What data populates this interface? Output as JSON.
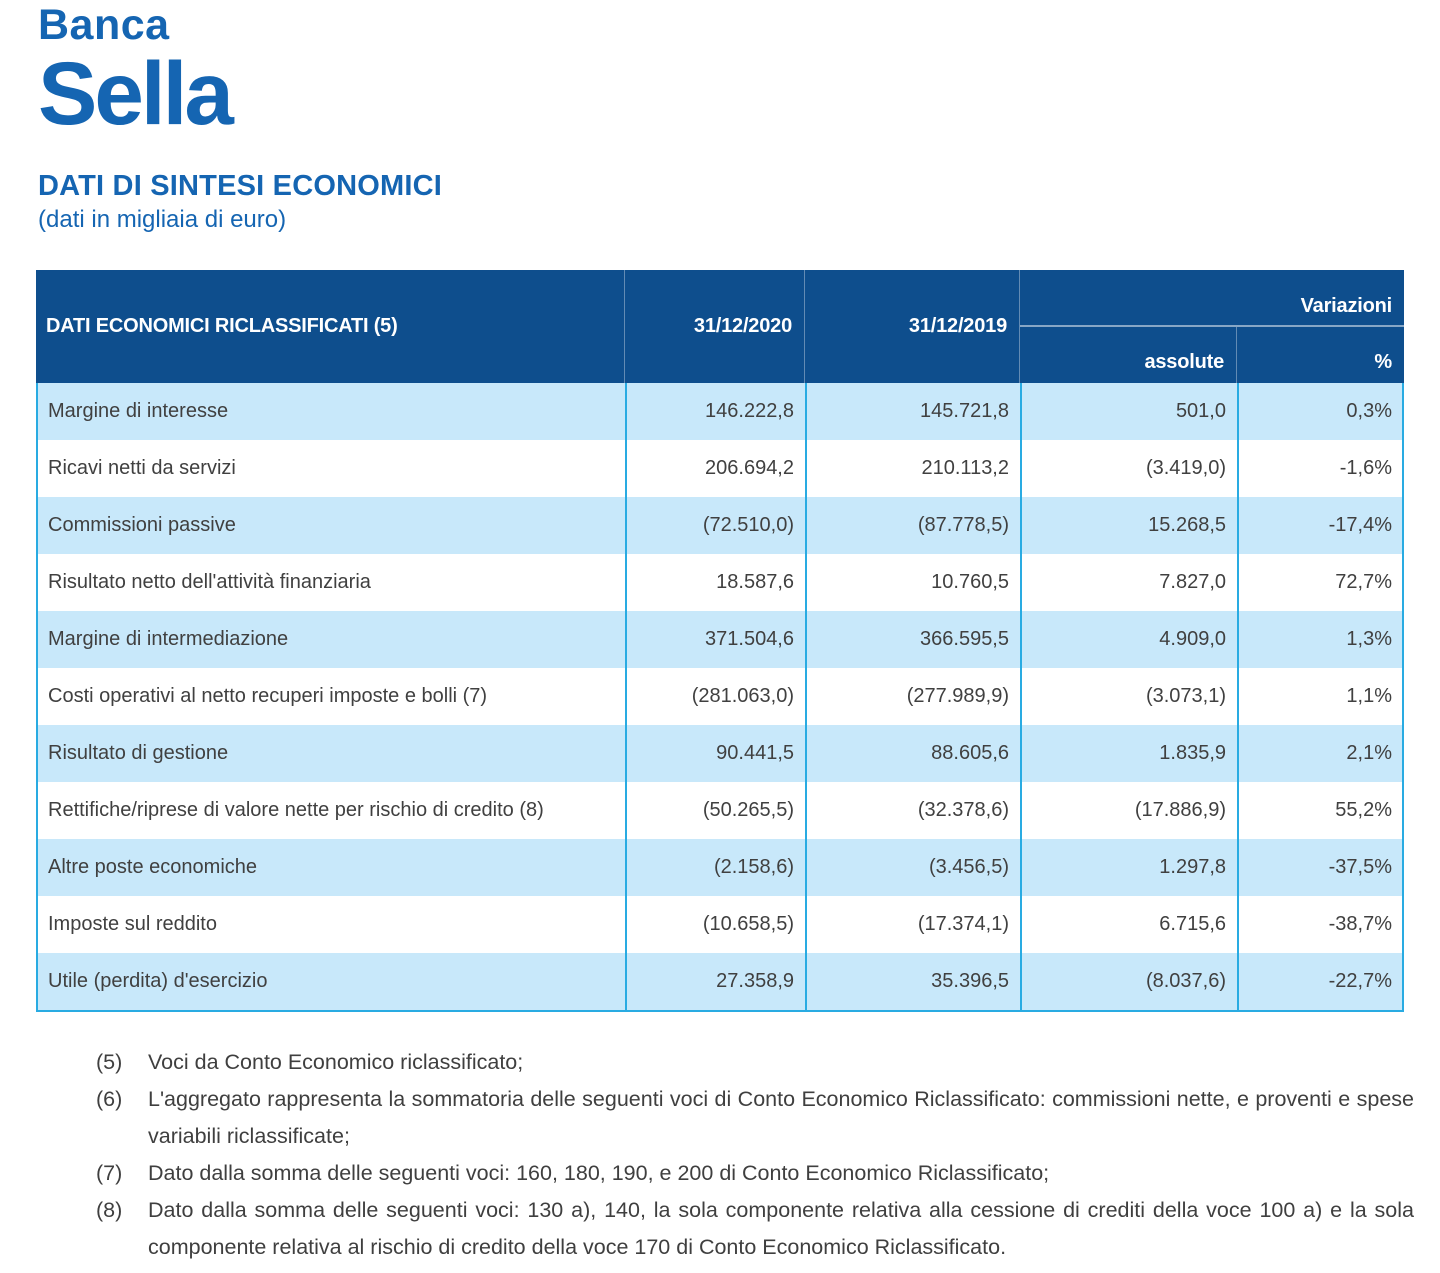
{
  "brand": {
    "line1": "Banca",
    "line2": "Sella"
  },
  "page": {
    "title": "DATI DI SINTESI ECONOMICI",
    "subtitle": "(dati in migliaia di euro)"
  },
  "colors": {
    "brand_blue": "#1565B2",
    "header_bg": "#0E4E8D",
    "row_alt_bg": "#C8E8FA",
    "grid_line": "#29ABE2",
    "body_text": "#404040"
  },
  "table": {
    "header": {
      "label": "DATI ECONOMICI RICLASSIFICATI (5)",
      "col_2020": "31/12/2020",
      "col_2019": "31/12/2019",
      "variazioni": "Variazioni",
      "assolute": "assolute",
      "percent": "%"
    },
    "rows": [
      {
        "label": "Margine di interesse",
        "v2020": "146.222,8",
        "v2019": "145.721,8",
        "assolute": "501,0",
        "pct": "0,3%"
      },
      {
        "label": "Ricavi netti da servizi",
        "v2020": "206.694,2",
        "v2019": "210.113,2",
        "assolute": "(3.419,0)",
        "pct": "-1,6%"
      },
      {
        "label": "Commissioni passive",
        "v2020": "(72.510,0)",
        "v2019": "(87.778,5)",
        "assolute": "15.268,5",
        "pct": "-17,4%"
      },
      {
        "label": "Risultato netto dell'attività finanziaria",
        "v2020": "18.587,6",
        "v2019": "10.760,5",
        "assolute": "7.827,0",
        "pct": "72,7%"
      },
      {
        "label": "Margine di intermediazione",
        "v2020": "371.504,6",
        "v2019": "366.595,5",
        "assolute": "4.909,0",
        "pct": "1,3%"
      },
      {
        "label": "Costi operativi al netto recuperi imposte e bolli (7)",
        "v2020": "(281.063,0)",
        "v2019": "(277.989,9)",
        "assolute": "(3.073,1)",
        "pct": "1,1%"
      },
      {
        "label": "Risultato di gestione",
        "v2020": "90.441,5",
        "v2019": "88.605,6",
        "assolute": "1.835,9",
        "pct": "2,1%"
      },
      {
        "label": "Rettifiche/riprese di valore nette per rischio di credito (8)",
        "v2020": "(50.265,5)",
        "v2019": "(32.378,6)",
        "assolute": "(17.886,9)",
        "pct": "55,2%"
      },
      {
        "label": "Altre poste economiche",
        "v2020": "(2.158,6)",
        "v2019": "(3.456,5)",
        "assolute": "1.297,8",
        "pct": "-37,5%"
      },
      {
        "label": "Imposte sul reddito",
        "v2020": "(10.658,5)",
        "v2019": "(17.374,1)",
        "assolute": "6.715,6",
        "pct": "-38,7%"
      },
      {
        "label": "Utile (perdita) d'esercizio",
        "v2020": "27.358,9",
        "v2019": "35.396,5",
        "assolute": "(8.037,6)",
        "pct": "-22,7%"
      }
    ]
  },
  "footnotes": [
    {
      "marker": "(5)",
      "text": "Voci da Conto Economico riclassificato;"
    },
    {
      "marker": "(6)",
      "text": "L'aggregato rappresenta la sommatoria delle seguenti voci di Conto Economico Riclassificato: commissioni nette, e proventi e spese variabili riclassificate;"
    },
    {
      "marker": "(7)",
      "text": "Dato dalla somma delle seguenti voci: 160, 180, 190, e 200 di Conto Economico Riclassificato;"
    },
    {
      "marker": "(8)",
      "text": "Dato dalla somma delle seguenti voci: 130 a), 140, la sola componente relativa alla cessione di crediti della voce 100 a) e la sola componente relativa al rischio di credito della voce 170 di Conto Economico Riclassificato."
    }
  ]
}
